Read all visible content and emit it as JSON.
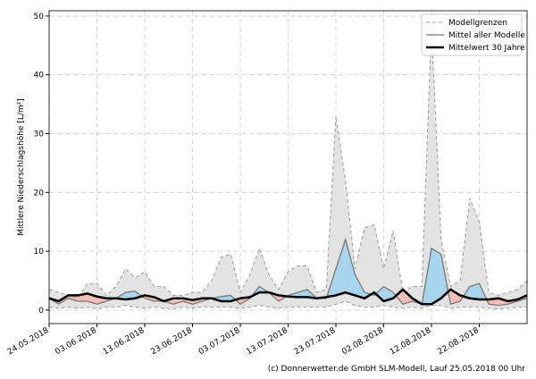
{
  "chart_data": {
    "type": "line",
    "y_label": "Mittlere Niederschlagshöhe [L/m²]",
    "footer": "(c) Donnerwetter.de GmbH SLM-Modell, Lauf 25.05.2018 00 Uhr",
    "x": [
      0,
      2,
      4,
      6,
      8,
      10,
      12,
      14,
      16,
      18,
      20,
      22,
      24,
      26,
      28,
      30,
      32,
      34,
      36,
      38,
      40,
      42,
      44,
      46,
      48,
      50,
      52,
      54,
      56,
      58,
      60,
      62,
      64,
      66,
      68,
      70,
      72,
      74,
      76,
      78,
      80,
      82,
      84,
      86,
      88,
      90,
      92,
      94,
      96,
      98,
      100
    ],
    "series": [
      {
        "name": "Modellgrenzen",
        "color": "#999999",
        "fill": "#e3e3e3",
        "values": [
          3.5,
          3,
          2.5,
          2,
          4.5,
          4.5,
          2.5,
          4,
          7,
          5.5,
          6.5,
          4,
          4,
          2.5,
          2.5,
          3,
          3,
          5,
          9,
          9.5,
          3,
          6,
          10.5,
          6,
          3.5,
          6.5,
          7.5,
          7.5,
          3,
          3.5,
          33,
          22,
          7,
          14,
          14.5,
          7,
          13.5,
          3,
          4,
          4,
          48.5,
          12,
          4,
          5,
          19,
          15,
          3,
          2.5,
          3,
          3.5,
          5
        ],
        "lower": [
          0.5,
          0.3,
          0.5,
          0.3,
          0.5,
          0.2,
          0.5,
          0.5,
          0.8,
          0.5,
          0.3,
          0.5,
          0.3,
          0.2,
          0.5,
          0.3,
          0.5,
          0.5,
          0.5,
          0.5,
          0.3,
          0.5,
          0.8,
          0.5,
          0.3,
          0.5,
          0.5,
          0.5,
          0.5,
          0.5,
          1,
          1.5,
          0.8,
          0.5,
          0.5,
          0.8,
          0.5,
          0.3,
          0.5,
          0.3,
          0.8,
          0.8,
          0.3,
          0.5,
          0.5,
          0.5,
          0.3,
          0.2,
          0.3,
          0.5,
          0.5
        ]
      },
      {
        "name": "Mittel aller Modelle",
        "color": "#777777",
        "values": [
          2,
          1,
          2,
          1.5,
          1.5,
          1,
          1.5,
          2,
          3,
          3.2,
          2,
          1.5,
          1.5,
          1,
          1.5,
          1,
          1.5,
          2,
          2.3,
          2.5,
          1,
          2,
          4,
          3,
          1.5,
          2.5,
          3,
          3.5,
          2,
          2,
          7,
          12,
          6,
          3,
          2.5,
          4,
          3,
          1,
          1.5,
          1,
          10.5,
          9.5,
          1,
          1.5,
          4,
          4.5,
          1,
          0.8,
          1,
          1.5,
          2
        ]
      },
      {
        "name": "Mittelwert 30 Jahre",
        "color": "#000000",
        "values": [
          2,
          1.5,
          2.5,
          2.5,
          2.8,
          2.3,
          2,
          2,
          1.8,
          2,
          2.5,
          2.2,
          1.5,
          2,
          2,
          1.7,
          2,
          2,
          1.5,
          1.5,
          2,
          2.2,
          3,
          3,
          2.5,
          2.3,
          2.2,
          2.2,
          2,
          2.2,
          2.5,
          3,
          2.5,
          2,
          3,
          1.5,
          2,
          3.5,
          2,
          1,
          1,
          2,
          3.5,
          2.5,
          2,
          1.8,
          1.8,
          2,
          1.5,
          1.8,
          2.5
        ]
      }
    ],
    "above_color": "#a8d5ee",
    "below_color": "#f2bdb5",
    "xlim": [
      0,
      100
    ],
    "xticks": [
      {
        "value": 0,
        "label": "24.05.2018"
      },
      {
        "value": 10,
        "label": "03.06.2018"
      },
      {
        "value": 20,
        "label": "13.06.2018"
      },
      {
        "value": 30,
        "label": "23.06.2018"
      },
      {
        "value": 40,
        "label": "03.07.2018"
      },
      {
        "value": 50,
        "label": "13.07.2018"
      },
      {
        "value": 60,
        "label": "23.07.2018"
      },
      {
        "value": 70,
        "label": "02.08.2018"
      },
      {
        "value": 80,
        "label": "12.08.2018"
      },
      {
        "value": 90,
        "label": "22.08.2018"
      }
    ],
    "ylim": [
      -2.3,
      50.9
    ],
    "yticks": [
      0,
      10,
      20,
      30,
      40,
      50
    ],
    "grid": true,
    "legend": "upper right"
  }
}
